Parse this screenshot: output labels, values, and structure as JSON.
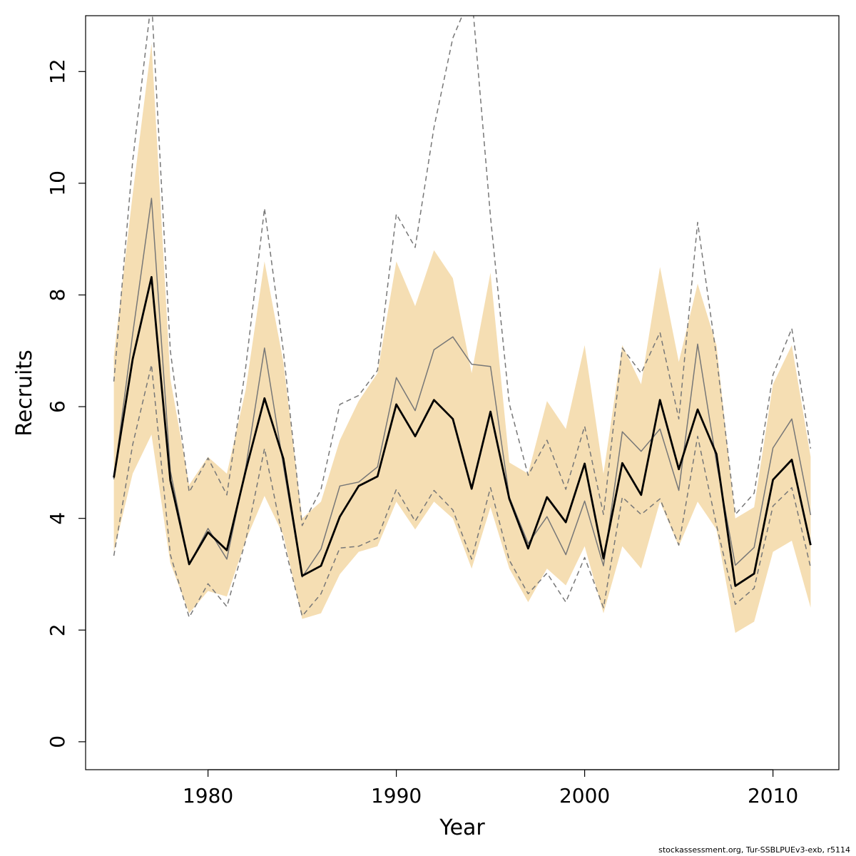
{
  "chart_data": {
    "type": "line",
    "xlabel": "Year",
    "ylabel": "Recruits",
    "xlim": [
      1973.5,
      2013.5
    ],
    "ylim": [
      -0.5,
      13
    ],
    "x_ticks": [
      1980,
      1990,
      2000,
      2010
    ],
    "y_ticks": [
      0,
      2,
      4,
      6,
      8,
      10,
      12
    ],
    "grid": false,
    "legend": "none",
    "x": [
      1975,
      1976,
      1977,
      1978,
      1979,
      1980,
      1981,
      1982,
      1983,
      1984,
      1985,
      1986,
      1987,
      1988,
      1989,
      1990,
      1991,
      1992,
      1993,
      1994,
      1995,
      1996,
      1997,
      1998,
      1999,
      2000,
      2001,
      2002,
      2003,
      2004,
      2005,
      2006,
      2007,
      2008,
      2009,
      2010,
      2011,
      2012
    ],
    "band": {
      "color": "#f5deb3",
      "upper": [
        6.9,
        9.8,
        12.5,
        6.5,
        4.6,
        5.1,
        4.8,
        6.3,
        8.6,
        6.8,
        4.0,
        4.3,
        5.4,
        6.1,
        6.6,
        8.6,
        7.8,
        8.8,
        8.3,
        6.6,
        8.4,
        5.0,
        4.8,
        6.1,
        5.6,
        7.1,
        4.8,
        7.1,
        6.4,
        8.5,
        6.8,
        8.2,
        7.1,
        4.0,
        4.2,
        6.4,
        7.1,
        5.1
      ],
      "lower": [
        3.4,
        4.8,
        5.5,
        3.2,
        2.3,
        2.7,
        2.6,
        3.6,
        4.4,
        3.7,
        2.2,
        2.3,
        3.0,
        3.4,
        3.5,
        4.3,
        3.8,
        4.3,
        4.0,
        3.1,
        4.2,
        3.1,
        2.5,
        3.1,
        2.8,
        3.5,
        2.3,
        3.5,
        3.1,
        4.3,
        3.5,
        4.3,
        3.8,
        1.95,
        2.15,
        3.4,
        3.6,
        2.4
      ]
    },
    "series": [
      {
        "color": "#000000",
        "style": "solid-thick",
        "values": [
          4.73,
          6.85,
          8.32,
          4.68,
          3.18,
          3.75,
          3.43,
          4.85,
          6.15,
          5.07,
          2.97,
          3.15,
          4.03,
          4.58,
          4.75,
          6.04,
          5.47,
          6.12,
          5.78,
          4.53,
          5.91,
          4.35,
          3.46,
          4.38,
          3.93,
          4.98,
          3.28,
          4.99,
          4.42,
          6.12,
          4.88,
          5.95,
          5.15,
          2.79,
          3.01,
          4.69,
          5.05,
          3.52
        ]
      },
      {
        "color": "#777777",
        "style": "solid-thin",
        "values": [
          4.7,
          7.3,
          9.73,
          4.85,
          3.17,
          3.82,
          3.27,
          4.9,
          7.05,
          4.95,
          2.95,
          3.45,
          4.58,
          4.65,
          4.92,
          6.52,
          5.93,
          7.02,
          7.25,
          6.76,
          6.72,
          4.38,
          3.55,
          4.03,
          3.35,
          4.31,
          3.15,
          5.55,
          5.2,
          5.6,
          4.5,
          7.12,
          5.0,
          3.16,
          3.48,
          5.26,
          5.78,
          4.06
        ]
      },
      {
        "color": "#777777",
        "style": "dashed",
        "values": [
          6.45,
          10.4,
          13.3,
          7.0,
          4.47,
          5.08,
          4.42,
          6.7,
          9.55,
          7.0,
          3.87,
          4.52,
          6.04,
          6.2,
          6.65,
          9.45,
          8.85,
          11.0,
          12.6,
          13.4,
          9.4,
          6.05,
          4.77,
          5.4,
          4.52,
          5.65,
          4.07,
          7.05,
          6.6,
          7.33,
          5.78,
          9.3,
          6.9,
          4.07,
          4.45,
          6.57,
          7.4,
          5.25
        ]
      },
      {
        "color": "#777777",
        "style": "dashed",
        "values": [
          3.33,
          5.32,
          6.75,
          3.35,
          2.23,
          2.83,
          2.42,
          3.6,
          5.25,
          3.6,
          2.25,
          2.65,
          3.47,
          3.5,
          3.65,
          4.52,
          3.95,
          4.5,
          4.15,
          3.27,
          4.55,
          3.25,
          2.65,
          3.02,
          2.5,
          3.3,
          2.4,
          4.38,
          4.07,
          4.35,
          3.52,
          5.47,
          3.88,
          2.46,
          2.75,
          4.22,
          4.55,
          3.12
        ]
      }
    ]
  },
  "footer": {
    "text": "stockassessment.org, Tur-SSBLPUEv3-exb, r5114"
  }
}
